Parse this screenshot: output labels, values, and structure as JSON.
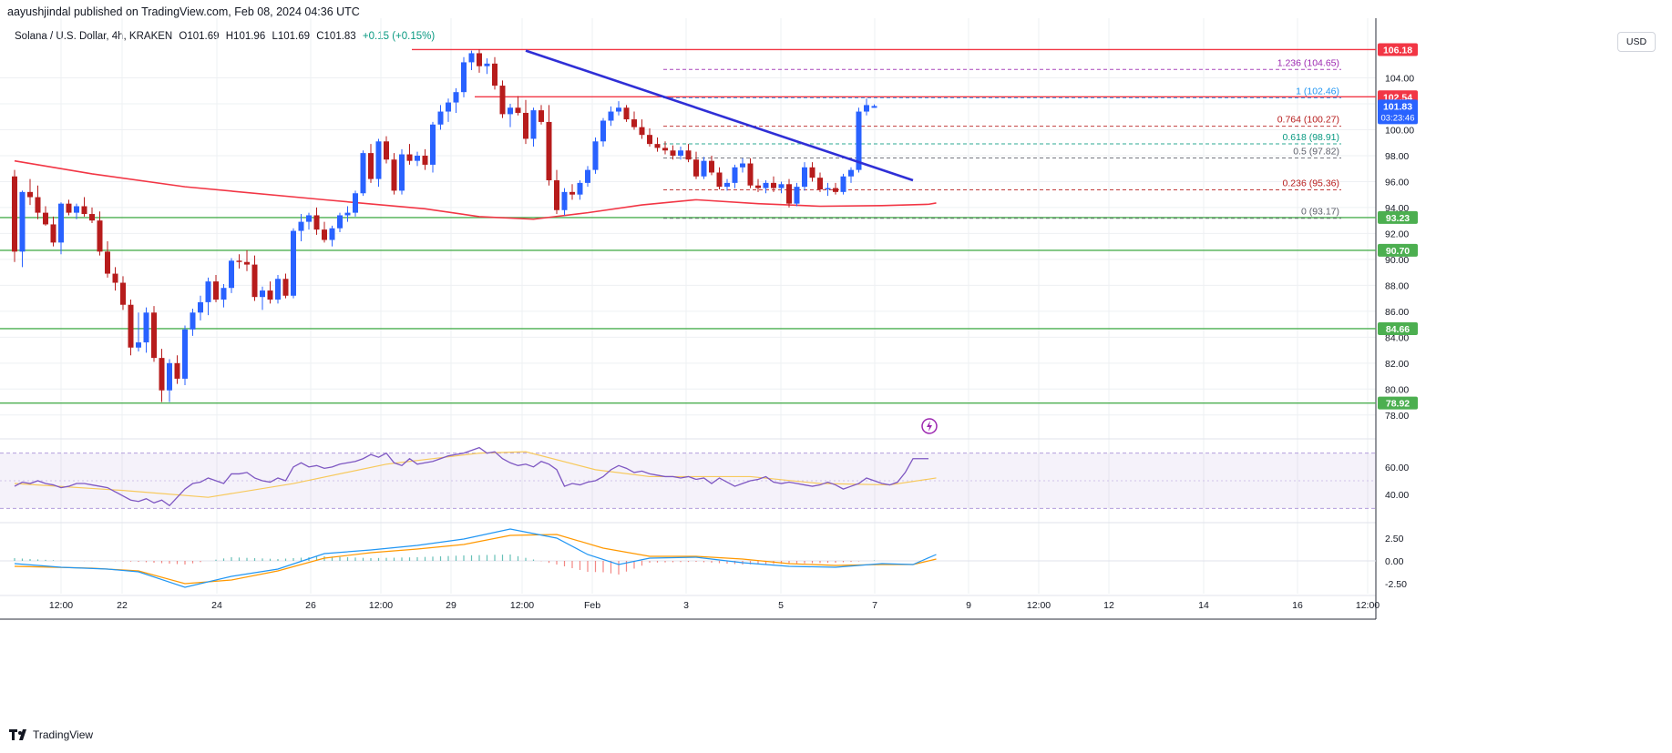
{
  "publisher_line": "aayushjindal published on TradingView.com, Feb 08, 2024 04:36 UTC",
  "symbol": "Solana / U.S. Dollar, 4h, KRAKEN",
  "ohlc": {
    "o": "O101.69",
    "h": "H101.96",
    "l": "L101.69",
    "c": "C101.83",
    "chg": "+0.15 (+0.15%)"
  },
  "currency": "USD",
  "brand": "TradingView",
  "colors": {
    "up": "#2962ff",
    "down": "#b71c1c",
    "hline_red": "#f23645",
    "hline_green": "#4caf50",
    "ma": "#f23645",
    "trendline": "#2f2fd6",
    "rsi": "#7e57c2",
    "rsi_ma": "#f7c95c",
    "macd": "#2196f3",
    "signal": "#ff9800"
  },
  "chart_data": {
    "type": "candlestick",
    "title": "Solana / U.S. Dollar, 4h, KRAKEN",
    "x_ticks": [
      "12:00",
      "22",
      "24",
      "26",
      "12:00",
      "29",
      "12:00",
      "Feb",
      "3",
      "5",
      "7",
      "9",
      "12:00",
      "12",
      "14",
      "16",
      "12:00"
    ],
    "y_ticks": [
      "78.00",
      "80.00",
      "82.00",
      "84.00",
      "86.00",
      "88.00",
      "90.00",
      "92.00",
      "94.00",
      "96.00",
      "98.00",
      "100.00",
      "102.00",
      "104.00"
    ],
    "ylim": [
      76.3,
      108.6
    ],
    "candles": [
      {
        "o": 96.4,
        "h": 96.9,
        "l": 89.8,
        "c": 90.6
      },
      {
        "o": 90.6,
        "h": 95.3,
        "l": 89.4,
        "c": 95.2
      },
      {
        "o": 95.2,
        "h": 96.2,
        "l": 94.2,
        "c": 94.8
      },
      {
        "o": 94.8,
        "h": 95.7,
        "l": 93.1,
        "c": 93.6
      },
      {
        "o": 93.6,
        "h": 94.1,
        "l": 92.6,
        "c": 92.7
      },
      {
        "o": 92.7,
        "h": 93.3,
        "l": 91.0,
        "c": 91.3
      },
      {
        "o": 91.3,
        "h": 94.4,
        "l": 90.4,
        "c": 94.3
      },
      {
        "o": 94.3,
        "h": 94.6,
        "l": 93.4,
        "c": 93.6
      },
      {
        "o": 93.6,
        "h": 94.3,
        "l": 93.1,
        "c": 94.1
      },
      {
        "o": 94.1,
        "h": 94.8,
        "l": 93.3,
        "c": 93.5
      },
      {
        "o": 93.5,
        "h": 94.0,
        "l": 92.8,
        "c": 93.0
      },
      {
        "o": 93.0,
        "h": 93.7,
        "l": 90.3,
        "c": 90.6
      },
      {
        "o": 90.6,
        "h": 91.4,
        "l": 88.6,
        "c": 88.9
      },
      {
        "o": 88.9,
        "h": 89.4,
        "l": 87.6,
        "c": 88.2
      },
      {
        "o": 88.2,
        "h": 88.7,
        "l": 86.1,
        "c": 86.5
      },
      {
        "o": 86.5,
        "h": 86.9,
        "l": 82.6,
        "c": 83.2
      },
      {
        "o": 83.2,
        "h": 85.9,
        "l": 82.9,
        "c": 83.6
      },
      {
        "o": 83.6,
        "h": 86.3,
        "l": 82.8,
        "c": 85.9
      },
      {
        "o": 85.9,
        "h": 86.4,
        "l": 82.1,
        "c": 82.4
      },
      {
        "o": 82.4,
        "h": 83.1,
        "l": 79.0,
        "c": 79.9
      },
      {
        "o": 79.9,
        "h": 82.3,
        "l": 79.0,
        "c": 82.0
      },
      {
        "o": 82.0,
        "h": 82.6,
        "l": 80.4,
        "c": 80.8
      },
      {
        "o": 80.8,
        "h": 84.9,
        "l": 80.3,
        "c": 84.6
      },
      {
        "o": 84.6,
        "h": 86.2,
        "l": 84.1,
        "c": 85.9
      },
      {
        "o": 85.9,
        "h": 87.2,
        "l": 85.3,
        "c": 86.7
      },
      {
        "o": 86.7,
        "h": 88.6,
        "l": 85.7,
        "c": 88.3
      },
      {
        "o": 88.3,
        "h": 88.8,
        "l": 86.7,
        "c": 86.9
      },
      {
        "o": 86.9,
        "h": 88.1,
        "l": 86.3,
        "c": 87.8
      },
      {
        "o": 87.8,
        "h": 90.1,
        "l": 87.4,
        "c": 89.9
      },
      {
        "o": 89.9,
        "h": 90.4,
        "l": 89.3,
        "c": 89.8
      },
      {
        "o": 89.8,
        "h": 90.7,
        "l": 89.1,
        "c": 89.6
      },
      {
        "o": 89.6,
        "h": 90.3,
        "l": 86.8,
        "c": 87.1
      },
      {
        "o": 87.1,
        "h": 87.9,
        "l": 86.1,
        "c": 87.6
      },
      {
        "o": 87.6,
        "h": 88.3,
        "l": 86.6,
        "c": 86.9
      },
      {
        "o": 86.9,
        "h": 88.8,
        "l": 86.6,
        "c": 88.5
      },
      {
        "o": 88.5,
        "h": 88.9,
        "l": 87.0,
        "c": 87.2
      },
      {
        "o": 87.2,
        "h": 92.4,
        "l": 87.0,
        "c": 92.2
      },
      {
        "o": 92.2,
        "h": 93.5,
        "l": 91.4,
        "c": 92.9
      },
      {
        "o": 92.9,
        "h": 93.6,
        "l": 92.3,
        "c": 93.4
      },
      {
        "o": 93.4,
        "h": 94.0,
        "l": 91.9,
        "c": 92.3
      },
      {
        "o": 92.3,
        "h": 92.9,
        "l": 91.3,
        "c": 91.5
      },
      {
        "o": 91.5,
        "h": 92.6,
        "l": 91.0,
        "c": 92.4
      },
      {
        "o": 92.4,
        "h": 93.6,
        "l": 92.1,
        "c": 93.4
      },
      {
        "o": 93.4,
        "h": 94.1,
        "l": 92.9,
        "c": 93.6
      },
      {
        "o": 93.6,
        "h": 95.3,
        "l": 93.3,
        "c": 95.1
      },
      {
        "o": 95.1,
        "h": 98.4,
        "l": 94.9,
        "c": 98.2
      },
      {
        "o": 98.2,
        "h": 98.9,
        "l": 95.9,
        "c": 96.2
      },
      {
        "o": 96.2,
        "h": 99.3,
        "l": 95.6,
        "c": 99.1
      },
      {
        "o": 99.1,
        "h": 99.5,
        "l": 97.4,
        "c": 97.7
      },
      {
        "o": 97.7,
        "h": 98.2,
        "l": 95.0,
        "c": 95.3
      },
      {
        "o": 95.3,
        "h": 98.5,
        "l": 95.0,
        "c": 98.1
      },
      {
        "o": 98.1,
        "h": 98.9,
        "l": 97.3,
        "c": 97.6
      },
      {
        "o": 97.6,
        "h": 98.3,
        "l": 97.2,
        "c": 98.0
      },
      {
        "o": 98.0,
        "h": 98.5,
        "l": 96.9,
        "c": 97.3
      },
      {
        "o": 97.3,
        "h": 100.6,
        "l": 96.7,
        "c": 100.4
      },
      {
        "o": 100.4,
        "h": 101.9,
        "l": 100.0,
        "c": 101.4
      },
      {
        "o": 101.4,
        "h": 102.4,
        "l": 100.6,
        "c": 102.1
      },
      {
        "o": 102.1,
        "h": 103.2,
        "l": 101.3,
        "c": 102.9
      },
      {
        "o": 102.9,
        "h": 105.6,
        "l": 102.5,
        "c": 105.2
      },
      {
        "o": 105.2,
        "h": 106.1,
        "l": 104.6,
        "c": 105.9
      },
      {
        "o": 105.9,
        "h": 106.2,
        "l": 104.4,
        "c": 104.9
      },
      {
        "o": 104.9,
        "h": 105.5,
        "l": 104.3,
        "c": 105.1
      },
      {
        "o": 105.1,
        "h": 105.6,
        "l": 103.1,
        "c": 103.4
      },
      {
        "o": 103.4,
        "h": 103.8,
        "l": 100.9,
        "c": 101.2
      },
      {
        "o": 101.2,
        "h": 102.0,
        "l": 100.2,
        "c": 101.7
      },
      {
        "o": 101.7,
        "h": 102.6,
        "l": 101.1,
        "c": 101.3
      },
      {
        "o": 101.3,
        "h": 102.3,
        "l": 98.9,
        "c": 99.3
      },
      {
        "o": 99.3,
        "h": 101.7,
        "l": 98.7,
        "c": 101.5
      },
      {
        "o": 101.5,
        "h": 101.9,
        "l": 100.4,
        "c": 100.6
      },
      {
        "o": 100.6,
        "h": 101.9,
        "l": 95.7,
        "c": 96.1
      },
      {
        "o": 96.1,
        "h": 96.9,
        "l": 93.5,
        "c": 93.8
      },
      {
        "o": 93.8,
        "h": 95.5,
        "l": 93.4,
        "c": 95.2
      },
      {
        "o": 95.2,
        "h": 95.8,
        "l": 94.6,
        "c": 95.0
      },
      {
        "o": 95.0,
        "h": 96.1,
        "l": 94.6,
        "c": 95.9
      },
      {
        "o": 95.9,
        "h": 97.2,
        "l": 95.6,
        "c": 96.9
      },
      {
        "o": 96.9,
        "h": 99.4,
        "l": 96.6,
        "c": 99.1
      },
      {
        "o": 99.1,
        "h": 100.9,
        "l": 98.7,
        "c": 100.7
      },
      {
        "o": 100.7,
        "h": 101.8,
        "l": 100.3,
        "c": 101.4
      },
      {
        "o": 101.4,
        "h": 102.2,
        "l": 101.1,
        "c": 101.7
      },
      {
        "o": 101.7,
        "h": 101.9,
        "l": 100.6,
        "c": 100.8
      },
      {
        "o": 100.8,
        "h": 101.4,
        "l": 100.0,
        "c": 100.2
      },
      {
        "o": 100.2,
        "h": 100.8,
        "l": 99.3,
        "c": 99.6
      },
      {
        "o": 99.6,
        "h": 100.1,
        "l": 98.7,
        "c": 98.9
      },
      {
        "o": 98.9,
        "h": 99.4,
        "l": 98.3,
        "c": 98.6
      },
      {
        "o": 98.6,
        "h": 99.1,
        "l": 98.1,
        "c": 98.4
      },
      {
        "o": 98.4,
        "h": 98.8,
        "l": 97.7,
        "c": 98.0
      },
      {
        "o": 98.0,
        "h": 98.7,
        "l": 97.7,
        "c": 98.4
      },
      {
        "o": 98.4,
        "h": 98.9,
        "l": 97.5,
        "c": 97.7
      },
      {
        "o": 97.7,
        "h": 98.3,
        "l": 96.2,
        "c": 96.4
      },
      {
        "o": 96.4,
        "h": 97.9,
        "l": 96.2,
        "c": 97.6
      },
      {
        "o": 97.6,
        "h": 98.0,
        "l": 96.5,
        "c": 96.7
      },
      {
        "o": 96.7,
        "h": 97.1,
        "l": 95.4,
        "c": 95.6
      },
      {
        "o": 95.6,
        "h": 96.2,
        "l": 95.3,
        "c": 95.9
      },
      {
        "o": 95.9,
        "h": 97.3,
        "l": 95.5,
        "c": 97.1
      },
      {
        "o": 97.1,
        "h": 97.8,
        "l": 96.7,
        "c": 97.4
      },
      {
        "o": 97.4,
        "h": 97.8,
        "l": 95.5,
        "c": 95.7
      },
      {
        "o": 95.7,
        "h": 96.2,
        "l": 95.2,
        "c": 95.5
      },
      {
        "o": 95.5,
        "h": 96.1,
        "l": 95.1,
        "c": 95.9
      },
      {
        "o": 95.9,
        "h": 96.4,
        "l": 95.2,
        "c": 95.5
      },
      {
        "o": 95.5,
        "h": 96.0,
        "l": 95.1,
        "c": 95.8
      },
      {
        "o": 95.8,
        "h": 96.2,
        "l": 94.0,
        "c": 94.3
      },
      {
        "o": 94.3,
        "h": 95.9,
        "l": 94.1,
        "c": 95.6
      },
      {
        "o": 95.6,
        "h": 97.5,
        "l": 95.3,
        "c": 97.1
      },
      {
        "o": 97.1,
        "h": 97.5,
        "l": 96.0,
        "c": 96.3
      },
      {
        "o": 96.3,
        "h": 96.7,
        "l": 95.2,
        "c": 95.4
      },
      {
        "o": 95.4,
        "h": 95.9,
        "l": 94.9,
        "c": 95.5
      },
      {
        "o": 95.5,
        "h": 95.9,
        "l": 95.0,
        "c": 95.2
      },
      {
        "o": 95.2,
        "h": 96.6,
        "l": 95.0,
        "c": 96.4
      },
      {
        "o": 96.4,
        "h": 97.1,
        "l": 95.9,
        "c": 96.9
      },
      {
        "o": 96.9,
        "h": 101.7,
        "l": 96.7,
        "c": 101.4
      },
      {
        "o": 101.4,
        "h": 102.4,
        "l": 101.1,
        "c": 101.9
      },
      {
        "o": 101.69,
        "h": 101.96,
        "l": 101.69,
        "c": 101.83
      }
    ],
    "ma": [
      [
        0,
        97.6
      ],
      [
        10,
        96.6
      ],
      [
        22,
        95.6
      ],
      [
        40,
        94.6
      ],
      [
        53,
        93.9
      ],
      [
        60,
        93.3
      ],
      [
        67,
        93.1
      ],
      [
        74,
        93.6
      ],
      [
        81,
        94.2
      ],
      [
        88,
        94.6
      ],
      [
        96,
        94.3
      ],
      [
        104,
        94.1
      ],
      [
        112,
        94.15
      ],
      [
        118,
        94.25
      ],
      [
        119,
        94.35
      ]
    ],
    "hlines": [
      {
        "value": 106.18,
        "label": "106.18",
        "kind": "resistance"
      },
      {
        "value": 102.54,
        "label": "102.54",
        "kind": "resistance"
      },
      {
        "value": 93.23,
        "label": "93.23",
        "kind": "support"
      },
      {
        "value": 90.7,
        "label": "90.70",
        "kind": "support"
      },
      {
        "value": 84.66,
        "label": "84.66",
        "kind": "support"
      },
      {
        "value": 78.92,
        "label": "78.92",
        "kind": "support"
      }
    ],
    "current_price": {
      "label": "101.83",
      "timer": "03:23:46",
      "value": 101.83
    },
    "trendline": [
      [
        66,
        106.1
      ],
      [
        116,
        96.1
      ]
    ],
    "fib": [
      {
        "ratio": "1.236",
        "value": 104.65,
        "text": "1.236 (104.65)",
        "color": "#9c27b0"
      },
      {
        "ratio": "1",
        "value": 102.46,
        "text": "1 (102.46)",
        "color": "#2196f3"
      },
      {
        "ratio": "0.764",
        "value": 100.27,
        "text": "0.764 (100.27)",
        "color": "#b71c1c"
      },
      {
        "ratio": "0.618",
        "value": 98.91,
        "text": "0.618 (98.91)",
        "color": "#089981"
      },
      {
        "ratio": "0.5",
        "value": 97.82,
        "text": "0.5 (97.82)",
        "color": "#5d606b"
      },
      {
        "ratio": "0.236",
        "value": 95.36,
        "text": "0.236 (95.36)",
        "color": "#b71c1c"
      },
      {
        "ratio": "0",
        "value": 93.17,
        "text": "0 (93.17)",
        "color": "#5d606b"
      }
    ],
    "rsi": {
      "y_ticks": [
        "40.00",
        "60.00"
      ],
      "ylim": [
        21,
        79
      ],
      "upper": 70,
      "lower": 30,
      "values": [
        46,
        49,
        48,
        50,
        48,
        47,
        45,
        46,
        48,
        48,
        47,
        46,
        45,
        42,
        39,
        36,
        35,
        37,
        34,
        36,
        32,
        38,
        44,
        48,
        49,
        52,
        50,
        48,
        55,
        55,
        56,
        52,
        50,
        49,
        52,
        50,
        60,
        63,
        60,
        61,
        59,
        60,
        62,
        63,
        64,
        66,
        69,
        67,
        70,
        63,
        61,
        66,
        62,
        63,
        64,
        66,
        68,
        69,
        70,
        72,
        74,
        70,
        71,
        66,
        63,
        61,
        62,
        60,
        64,
        62,
        58,
        46,
        48,
        47,
        49,
        50,
        53,
        58,
        61,
        59,
        56,
        57,
        55,
        54,
        53,
        53,
        52,
        53,
        51,
        52,
        48,
        52,
        49,
        46,
        48,
        50,
        51,
        53,
        49,
        48,
        49,
        48,
        47,
        46,
        47,
        49,
        47,
        44,
        46,
        48,
        52,
        50,
        48,
        47,
        49,
        56,
        66,
        66,
        66
      ],
      "ma_values": [
        [
          0,
          48
        ],
        [
          14,
          43
        ],
        [
          25,
          38
        ],
        [
          36,
          48
        ],
        [
          48,
          62
        ],
        [
          60,
          70
        ],
        [
          66,
          71
        ],
        [
          75,
          58
        ],
        [
          82,
          53
        ],
        [
          95,
          53
        ],
        [
          104,
          48
        ],
        [
          113,
          47
        ],
        [
          119,
          52
        ]
      ]
    },
    "macd": {
      "y_ticks": [
        "-2.50",
        "0.00",
        "2.50"
      ],
      "ylim": [
        -3.6,
        4.0
      ],
      "macd_values": [
        [
          0,
          -0.3
        ],
        [
          6,
          -0.7
        ],
        [
          12,
          -0.9
        ],
        [
          16,
          -1.2
        ],
        [
          22,
          -2.9
        ],
        [
          28,
          -1.7
        ],
        [
          34,
          -0.9
        ],
        [
          40,
          0.8
        ],
        [
          46,
          1.2
        ],
        [
          52,
          1.7
        ],
        [
          58,
          2.4
        ],
        [
          64,
          3.5
        ],
        [
          70,
          2.5
        ],
        [
          74,
          0.7
        ],
        [
          78,
          -0.4
        ],
        [
          82,
          0.3
        ],
        [
          88,
          0.4
        ],
        [
          94,
          -0.2
        ],
        [
          100,
          -0.6
        ],
        [
          106,
          -0.7
        ],
        [
          112,
          -0.3
        ],
        [
          116,
          -0.4
        ],
        [
          119,
          0.7
        ]
      ],
      "signal_values": [
        [
          0,
          -0.6
        ],
        [
          10,
          -0.8
        ],
        [
          16,
          -1.1
        ],
        [
          22,
          -2.5
        ],
        [
          28,
          -2.1
        ],
        [
          34,
          -1.1
        ],
        [
          40,
          0.3
        ],
        [
          46,
          0.9
        ],
        [
          52,
          1.3
        ],
        [
          58,
          1.8
        ],
        [
          64,
          2.8
        ],
        [
          70,
          2.9
        ],
        [
          76,
          1.4
        ],
        [
          82,
          0.5
        ],
        [
          88,
          0.5
        ],
        [
          94,
          0.2
        ],
        [
          100,
          -0.3
        ],
        [
          106,
          -0.5
        ],
        [
          112,
          -0.4
        ],
        [
          116,
          -0.4
        ],
        [
          119,
          0.2
        ]
      ]
    }
  }
}
